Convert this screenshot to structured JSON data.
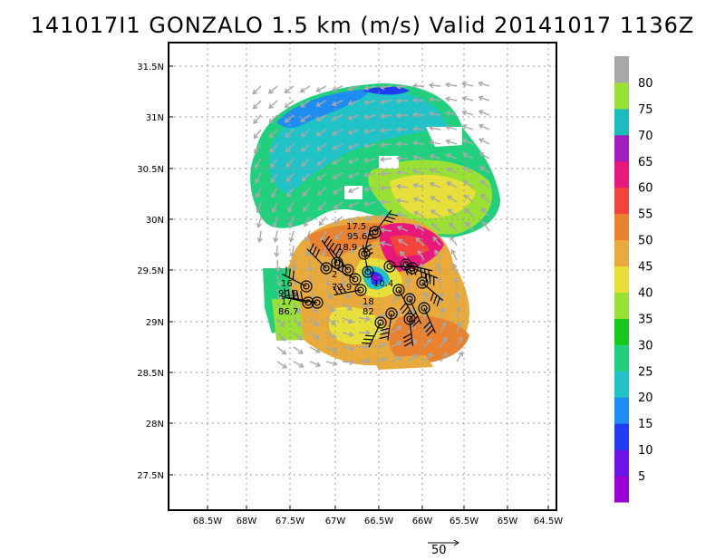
{
  "title": "141017I1 GONZALO 1.5 km (m/s) Valid 20141017 1136Z",
  "axes": {
    "x_ticks": [
      "68.5W",
      "68W",
      "67.5W",
      "67W",
      "66.5W",
      "66W",
      "65.5W",
      "65W",
      "64.5W"
    ],
    "y_ticks": [
      "31.5N",
      "31N",
      "30.5N",
      "30N",
      "29.5N",
      "29N",
      "28.5N",
      "28N",
      "27.5N"
    ]
  },
  "colorbar": {
    "labels": [
      "5",
      "10",
      "15",
      "20",
      "25",
      "30",
      "35",
      "40",
      "45",
      "50",
      "55",
      "60",
      "65",
      "70",
      "75",
      "80"
    ],
    "colors": [
      "#9a00d6",
      "#6a14e8",
      "#1f3cf2",
      "#1e8cf0",
      "#20c3c7",
      "#21d07c",
      "#16c81c",
      "#9be035",
      "#e8e03a",
      "#e8aa3a",
      "#e8822f",
      "#f2443c",
      "#e8197a",
      "#a21cc0",
      "#1bbcbc",
      "#9be035",
      "#a8a8a8"
    ]
  },
  "obs_labels": [
    {
      "speed": "17.5",
      "dir": "95.6"
    },
    {
      "speed": "18.9",
      "dir": ""
    },
    {
      "speed": "16",
      "dir": "90.9"
    },
    {
      "speed": "17",
      "dir": "86.7"
    },
    {
      "speed": "10.4",
      "dir": ""
    },
    {
      "speed": "18",
      "dir": "82"
    },
    {
      "speed": "2",
      "dir": "72.9"
    }
  ],
  "scale_vector": {
    "label": "50"
  }
}
